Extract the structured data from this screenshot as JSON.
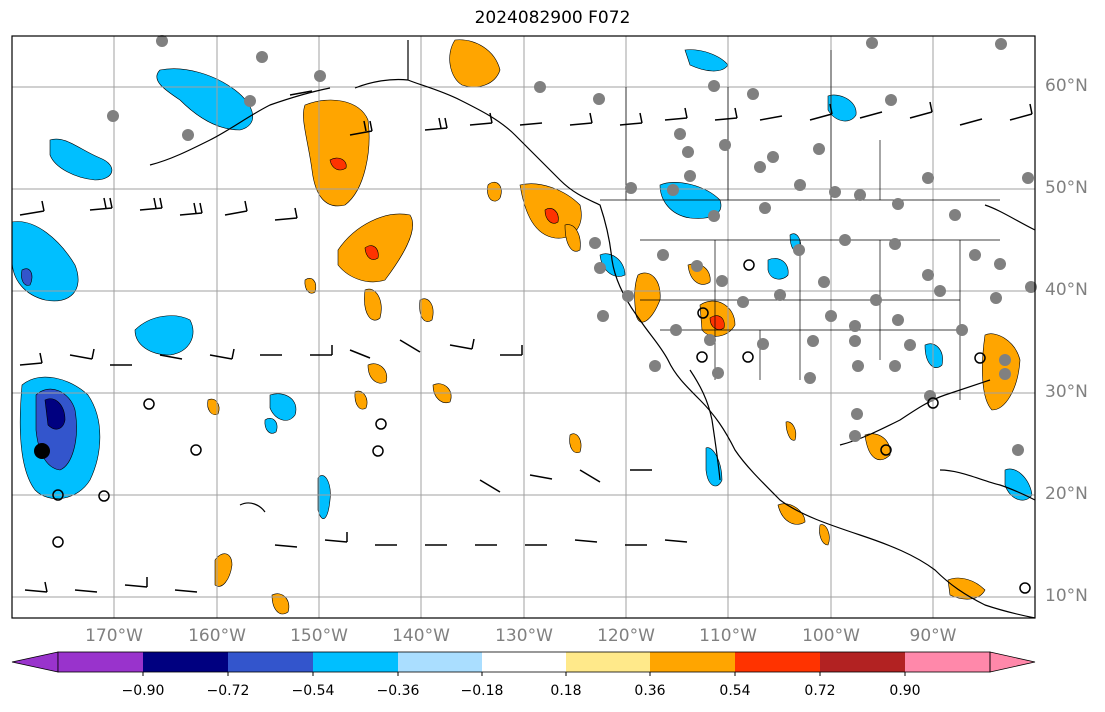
{
  "title": "2024082900 F072",
  "lat_labels": [
    "60°N",
    "50°N",
    "40°N",
    "30°N",
    "20°N",
    "10°N"
  ],
  "lon_labels": [
    "170°W",
    "160°W",
    "150°W",
    "140°W",
    "130°W",
    "120°W",
    "110°W",
    "100°W",
    "90°W"
  ],
  "colorbar": {
    "tick_labels": [
      "−0.90",
      "−0.72",
      "−0.54",
      "−0.36",
      "−0.18",
      "0.18",
      "0.36",
      "0.54",
      "0.72",
      "0.90"
    ],
    "colors": [
      "#9933cc",
      "#000080",
      "#3355cc",
      "#00bfff",
      "#aadeff",
      "#ffffff",
      "#ffe98a",
      "#ffa500",
      "#ff3300",
      "#b22222",
      "#ff88aa"
    ]
  },
  "colors": {
    "ocean_land": "#ffffff",
    "coastline": "#000000",
    "gridline": "#a0a0a0",
    "label_gray": "#808080",
    "station_gray": "#808080"
  }
}
